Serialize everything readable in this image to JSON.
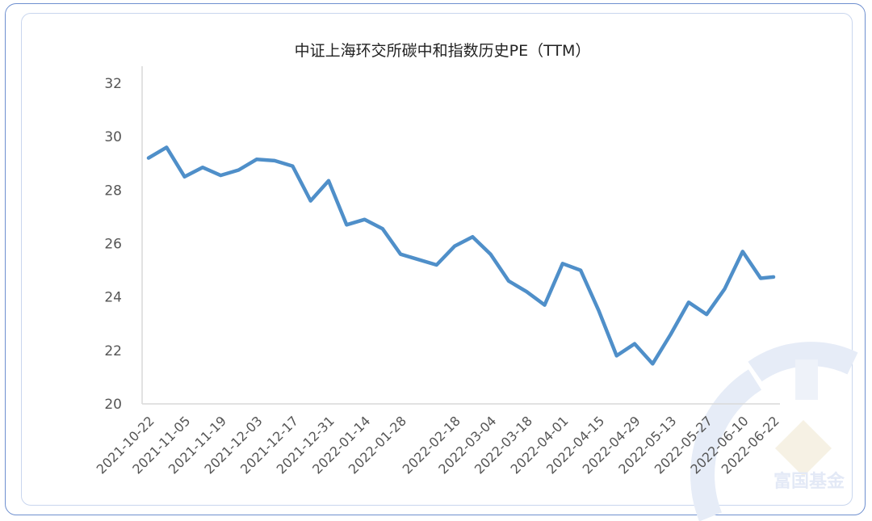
{
  "chart_data": {
    "type": "line",
    "title": "中证上海环交所碳中和指数历史PE（TTM）",
    "xlabel": "",
    "ylabel": "",
    "ylim": [
      20,
      32
    ],
    "yticks": [
      20,
      22,
      24,
      26,
      28,
      30,
      32
    ],
    "grid": false,
    "xtick_labels": [
      "2021-10-22",
      "2021-11-05",
      "2021-11-19",
      "2021-12-03",
      "2021-12-17",
      "2021-12-31",
      "2022-01-14",
      "2022-01-28",
      "2022-02-18",
      "2022-03-04",
      "2022-03-18",
      "2022-04-01",
      "2022-04-15",
      "2022-04-29",
      "2022-05-13",
      "2022-05-27",
      "2022-06-10",
      "2022-06-22"
    ],
    "x": [
      "2021-10-22",
      "2021-10-29",
      "2021-11-05",
      "2021-11-12",
      "2021-11-19",
      "2021-11-26",
      "2021-12-03",
      "2021-12-10",
      "2021-12-17",
      "2021-12-24",
      "2021-12-31",
      "2022-01-07",
      "2022-01-14",
      "2022-01-21",
      "2022-01-28",
      "2022-02-11",
      "2022-02-18",
      "2022-02-25",
      "2022-03-04",
      "2022-03-11",
      "2022-03-18",
      "2022-03-25",
      "2022-04-01",
      "2022-04-08",
      "2022-04-15",
      "2022-04-22",
      "2022-04-29",
      "2022-05-06",
      "2022-05-13",
      "2022-05-20",
      "2022-05-27",
      "2022-06-03",
      "2022-06-10",
      "2022-06-17",
      "2022-06-22"
    ],
    "series": [
      {
        "values": [
          29.2,
          29.6,
          28.5,
          28.85,
          28.55,
          28.75,
          29.15,
          29.1,
          28.9,
          27.6,
          28.35,
          26.7,
          26.9,
          26.55,
          25.6,
          25.2,
          25.9,
          26.25,
          25.6,
          24.6,
          24.2,
          23.7,
          25.25,
          25.0,
          23.5,
          21.8,
          22.25,
          21.5,
          22.6,
          23.8,
          23.35,
          24.3,
          25.7,
          24.7,
          24.75
        ],
        "color": "#4f8fc9"
      }
    ]
  },
  "watermark": {
    "brand_text": "富国基金"
  }
}
